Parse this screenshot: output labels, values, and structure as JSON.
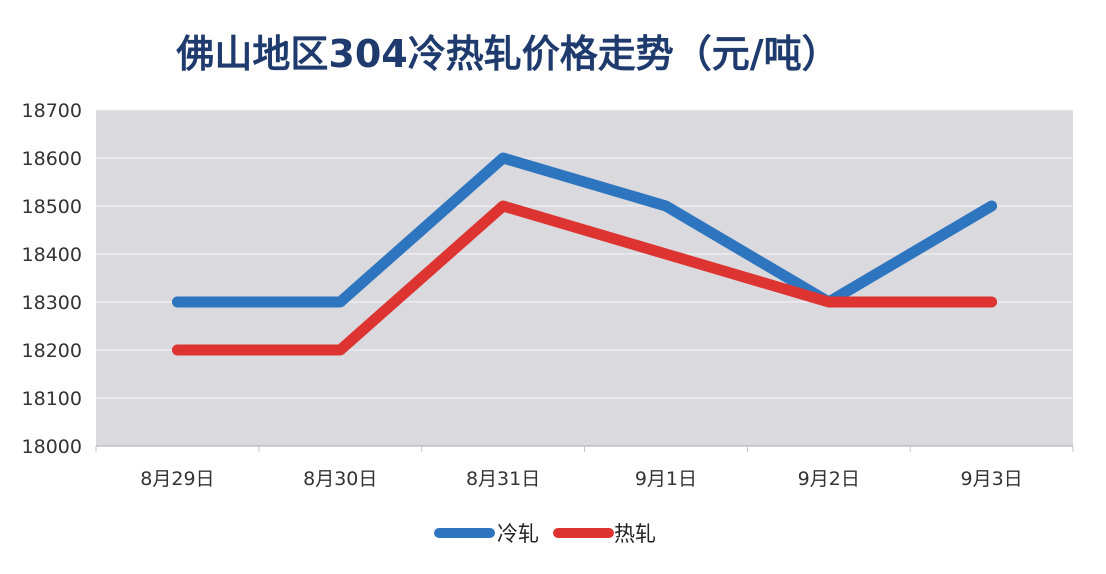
{
  "chart_data": {
    "type": "line",
    "title": "佛山地区304冷热轧价格走势（元/吨）",
    "xlabel": "",
    "ylabel": "",
    "categories": [
      "8月29日",
      "8月30日",
      "8月31日",
      "9月1日",
      "9月2日",
      "9月3日"
    ],
    "ylim": [
      18000,
      18700
    ],
    "yticks": [
      "18000",
      "18100",
      "18200",
      "18300",
      "18400",
      "18500",
      "18600",
      "18700"
    ],
    "grid": true,
    "legend_position": "bottom",
    "series": [
      {
        "name": "冷轧",
        "color": "#2e75c0",
        "values": [
          18300,
          18300,
          18600,
          18500,
          18300,
          18500
        ]
      },
      {
        "name": "热轧",
        "color": "#de3431",
        "values": [
          18200,
          18200,
          18500,
          18400,
          18300,
          18300
        ]
      }
    ],
    "plot_background": "#d9d9de"
  }
}
